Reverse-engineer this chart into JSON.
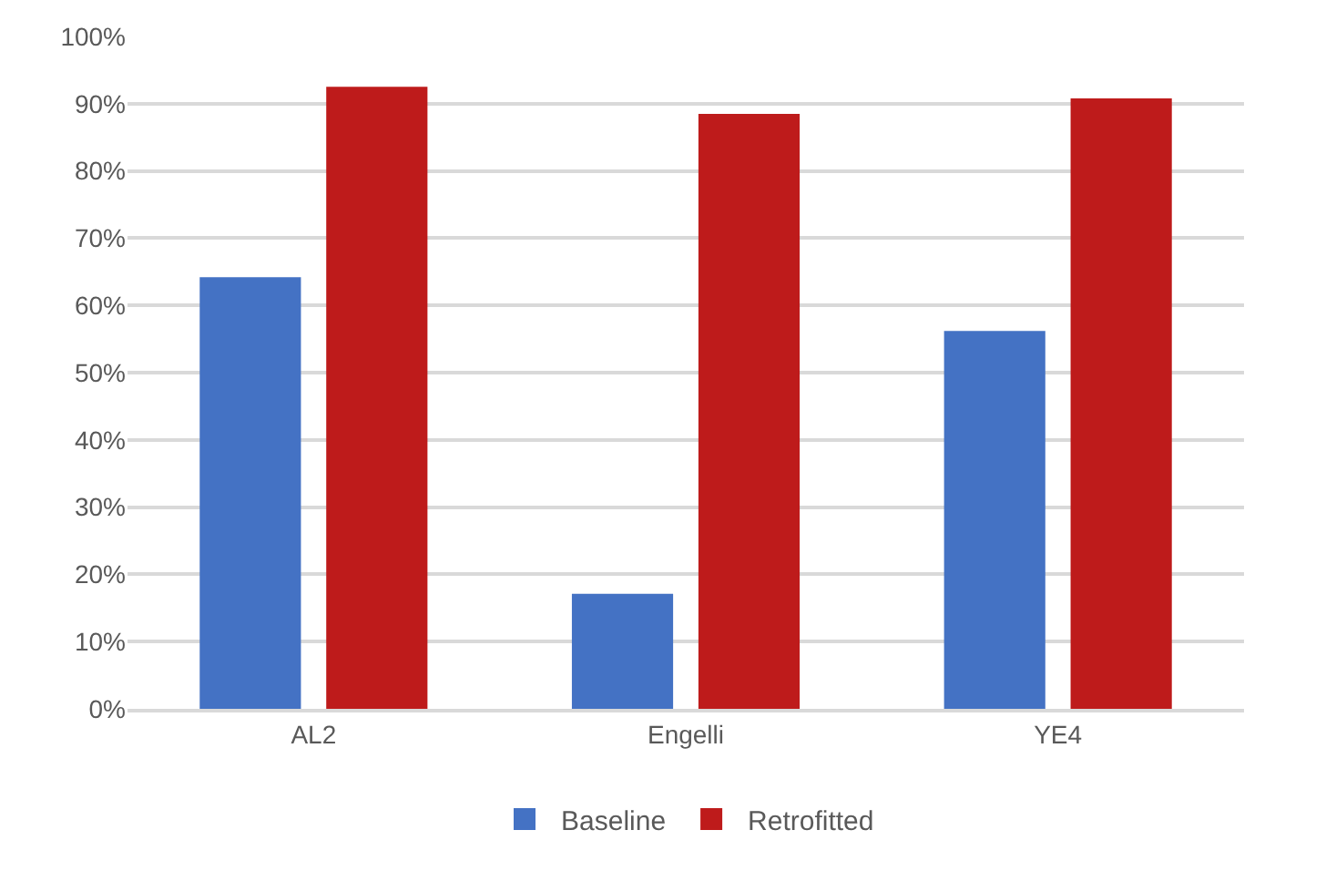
{
  "chart_data": {
    "type": "bar",
    "categories": [
      "AL2",
      "Engelli",
      "YE4"
    ],
    "series": [
      {
        "name": "Baseline",
        "color": "#4472c4",
        "values": [
          64.2,
          17.1,
          56.2
        ]
      },
      {
        "name": "Retrofitted",
        "color": "#be1b1b",
        "values": [
          92.5,
          88.5,
          90.8
        ]
      }
    ],
    "ylim": [
      0,
      100
    ],
    "yticks": [
      {
        "value": 0,
        "label": "0%"
      },
      {
        "value": 10,
        "label": "10%"
      },
      {
        "value": 20,
        "label": "20%"
      },
      {
        "value": 30,
        "label": "30%"
      },
      {
        "value": 40,
        "label": "40%"
      },
      {
        "value": 50,
        "label": "50%"
      },
      {
        "value": 60,
        "label": "60%"
      },
      {
        "value": 70,
        "label": "70%"
      },
      {
        "value": 80,
        "label": "80%"
      },
      {
        "value": 90,
        "label": "90%"
      },
      {
        "value": 100,
        "label": "100%"
      }
    ],
    "grid": "y",
    "legend": "bottom"
  }
}
